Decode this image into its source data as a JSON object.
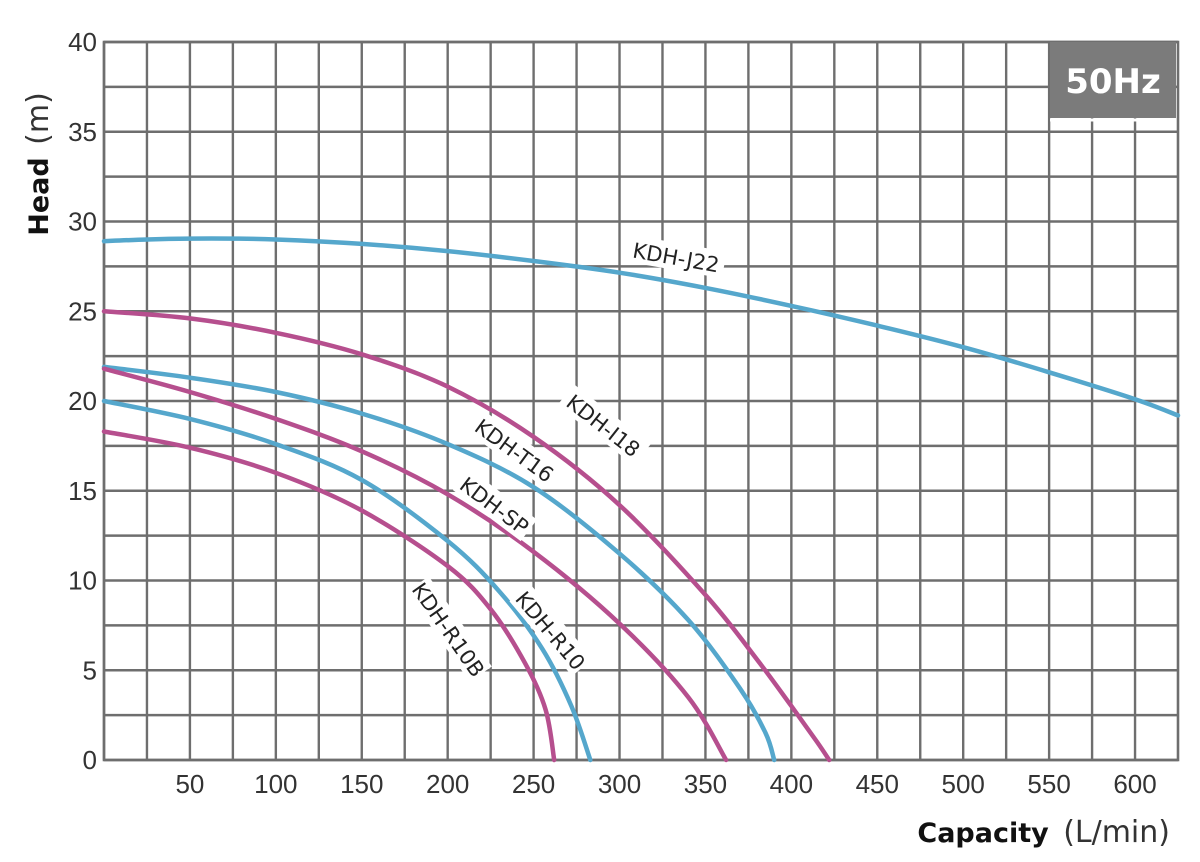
{
  "chart_data": {
    "type": "line",
    "badge": "50Hz",
    "xlabel": "Capacity",
    "xunit": "(L/min)",
    "ylabel": "Head",
    "yunit": "(m)",
    "xlim": [
      0,
      625
    ],
    "ylim": [
      0,
      40
    ],
    "grid": true,
    "x_ticks": [
      "50",
      "100",
      "150",
      "200",
      "250",
      "300",
      "350",
      "400",
      "450",
      "500",
      "550",
      "600"
    ],
    "y_ticks": [
      "0",
      "5",
      "10",
      "15",
      "20",
      "25",
      "30",
      "35",
      "40"
    ],
    "colors": {
      "blue": "#55a7cc",
      "magenta": "#b64f8e",
      "grid": "#6e6e6e",
      "badge": "#7b7b7b"
    },
    "series": [
      {
        "name": "KDH-J22",
        "color": "#55a7cc",
        "x": [
          0,
          25,
          50,
          75,
          100,
          150,
          200,
          250,
          300,
          350,
          400,
          450,
          500,
          550,
          600,
          625
        ],
        "y": [
          28.9,
          29.0,
          29.05,
          29.05,
          29.0,
          28.75,
          28.35,
          27.8,
          27.15,
          26.3,
          25.3,
          24.2,
          23.0,
          21.6,
          20.1,
          19.2
        ]
      },
      {
        "name": "KDH-I18",
        "color": "#b64f8e",
        "x": [
          0,
          50,
          100,
          150,
          200,
          250,
          300,
          350,
          380,
          400,
          415,
          422
        ],
        "y": [
          25.0,
          24.6,
          23.8,
          22.6,
          20.8,
          18.0,
          14.2,
          9.2,
          5.6,
          3.0,
          1.0,
          0
        ]
      },
      {
        "name": "KDH-T16",
        "color": "#55a7cc",
        "x": [
          0,
          50,
          100,
          150,
          200,
          250,
          300,
          340,
          370,
          385,
          390
        ],
        "y": [
          21.9,
          21.3,
          20.5,
          19.3,
          17.6,
          15.2,
          11.5,
          7.8,
          4.0,
          1.5,
          0
        ]
      },
      {
        "name": "KDH-SP",
        "color": "#b64f8e",
        "x": [
          0,
          50,
          100,
          150,
          200,
          250,
          300,
          340,
          362
        ],
        "y": [
          21.8,
          20.5,
          19.0,
          17.2,
          14.8,
          11.6,
          7.6,
          3.5,
          0
        ]
      },
      {
        "name": "KDH-R10",
        "color": "#55a7cc",
        "x": [
          0,
          50,
          100,
          150,
          200,
          230,
          255,
          272,
          283
        ],
        "y": [
          20.0,
          19.0,
          17.6,
          15.6,
          12.2,
          9.4,
          6.2,
          3.0,
          0
        ]
      },
      {
        "name": "KDH-R10B",
        "color": "#b64f8e",
        "x": [
          0,
          50,
          100,
          150,
          200,
          225,
          245,
          257,
          262
        ],
        "y": [
          18.3,
          17.4,
          16.0,
          13.9,
          10.8,
          8.4,
          5.4,
          2.8,
          0
        ]
      }
    ]
  }
}
